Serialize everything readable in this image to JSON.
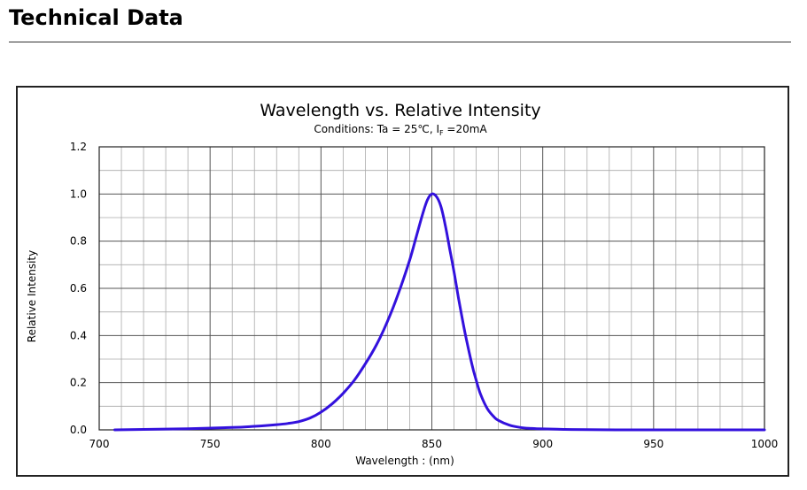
{
  "header": {
    "title": "Technical Data"
  },
  "chart_data": {
    "type": "line",
    "title": "Wavelength vs. Relative Intensity",
    "conditions": {
      "prefix": "Conditions: Ta = 25℃, I",
      "subscript": "F",
      "suffix": " =20mA"
    },
    "xlabel": "Wavelength : (nm)",
    "ylabel": "Relative Intensity",
    "xlim": [
      700,
      1000
    ],
    "ylim": [
      0,
      1.2
    ],
    "x_ticks": [
      "700",
      "750",
      "800",
      "850",
      "900",
      "950",
      "1000"
    ],
    "y_ticks": [
      "0.0",
      "0.2",
      "0.4",
      "0.6",
      "0.8",
      "1.0",
      "1.2"
    ],
    "x_tick_values": [
      700,
      750,
      800,
      850,
      900,
      950,
      1000
    ],
    "y_tick_values": [
      0,
      0.2,
      0.4,
      0.6,
      0.8,
      1.0,
      1.2
    ],
    "grid": true,
    "series": [
      {
        "name": "Relative Intensity",
        "color": "#3311dd",
        "x": [
          707,
          720,
          740,
          760,
          770,
          780,
          785,
          790,
          795,
          800,
          805,
          810,
          815,
          820,
          825,
          830,
          835,
          840,
          843,
          846,
          848,
          850,
          852,
          854,
          856,
          858,
          860,
          862,
          865,
          868,
          870,
          872,
          875,
          878,
          880,
          885,
          890,
          895,
          900,
          910,
          920,
          940,
          960,
          980,
          1000
        ],
        "y": [
          0.0,
          0.002,
          0.005,
          0.01,
          0.015,
          0.022,
          0.027,
          0.035,
          0.05,
          0.075,
          0.11,
          0.155,
          0.21,
          0.28,
          0.36,
          0.46,
          0.58,
          0.72,
          0.82,
          0.92,
          0.975,
          1.0,
          0.99,
          0.95,
          0.87,
          0.77,
          0.67,
          0.56,
          0.41,
          0.28,
          0.21,
          0.15,
          0.09,
          0.055,
          0.04,
          0.02,
          0.01,
          0.006,
          0.004,
          0.002,
          0.001,
          0.0,
          0.0,
          0.0,
          0.0
        ]
      }
    ]
  }
}
